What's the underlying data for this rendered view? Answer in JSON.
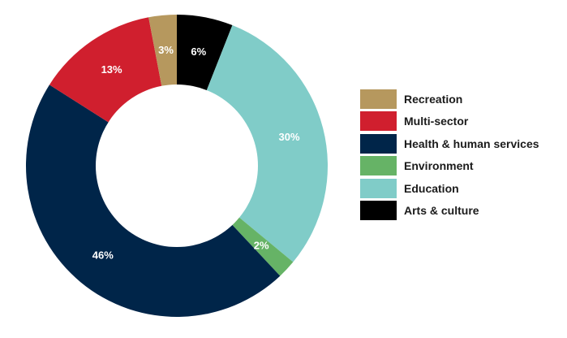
{
  "chart_data": {
    "type": "pie",
    "title": "",
    "segments": [
      {
        "name": "Arts & culture",
        "value": 6,
        "label": "6%",
        "color": "#000000"
      },
      {
        "name": "Education",
        "value": 30,
        "label": "30%",
        "color": "#80CCC8"
      },
      {
        "name": "Environment",
        "value": 2,
        "label": "2%",
        "color": "#66B366"
      },
      {
        "name": "Health & human services",
        "value": 46,
        "label": "46%",
        "color": "#002549"
      },
      {
        "name": "Multi-sector",
        "value": 13,
        "label": "13%",
        "color": "#D01F2E"
      },
      {
        "name": "Recreation",
        "value": 3,
        "label": "3%",
        "color": "#B6985E"
      }
    ],
    "legend": {
      "placement": "right",
      "order": [
        "Recreation",
        "Multi-sector",
        "Health & human services",
        "Environment",
        "Education",
        "Arts & culture"
      ]
    }
  }
}
